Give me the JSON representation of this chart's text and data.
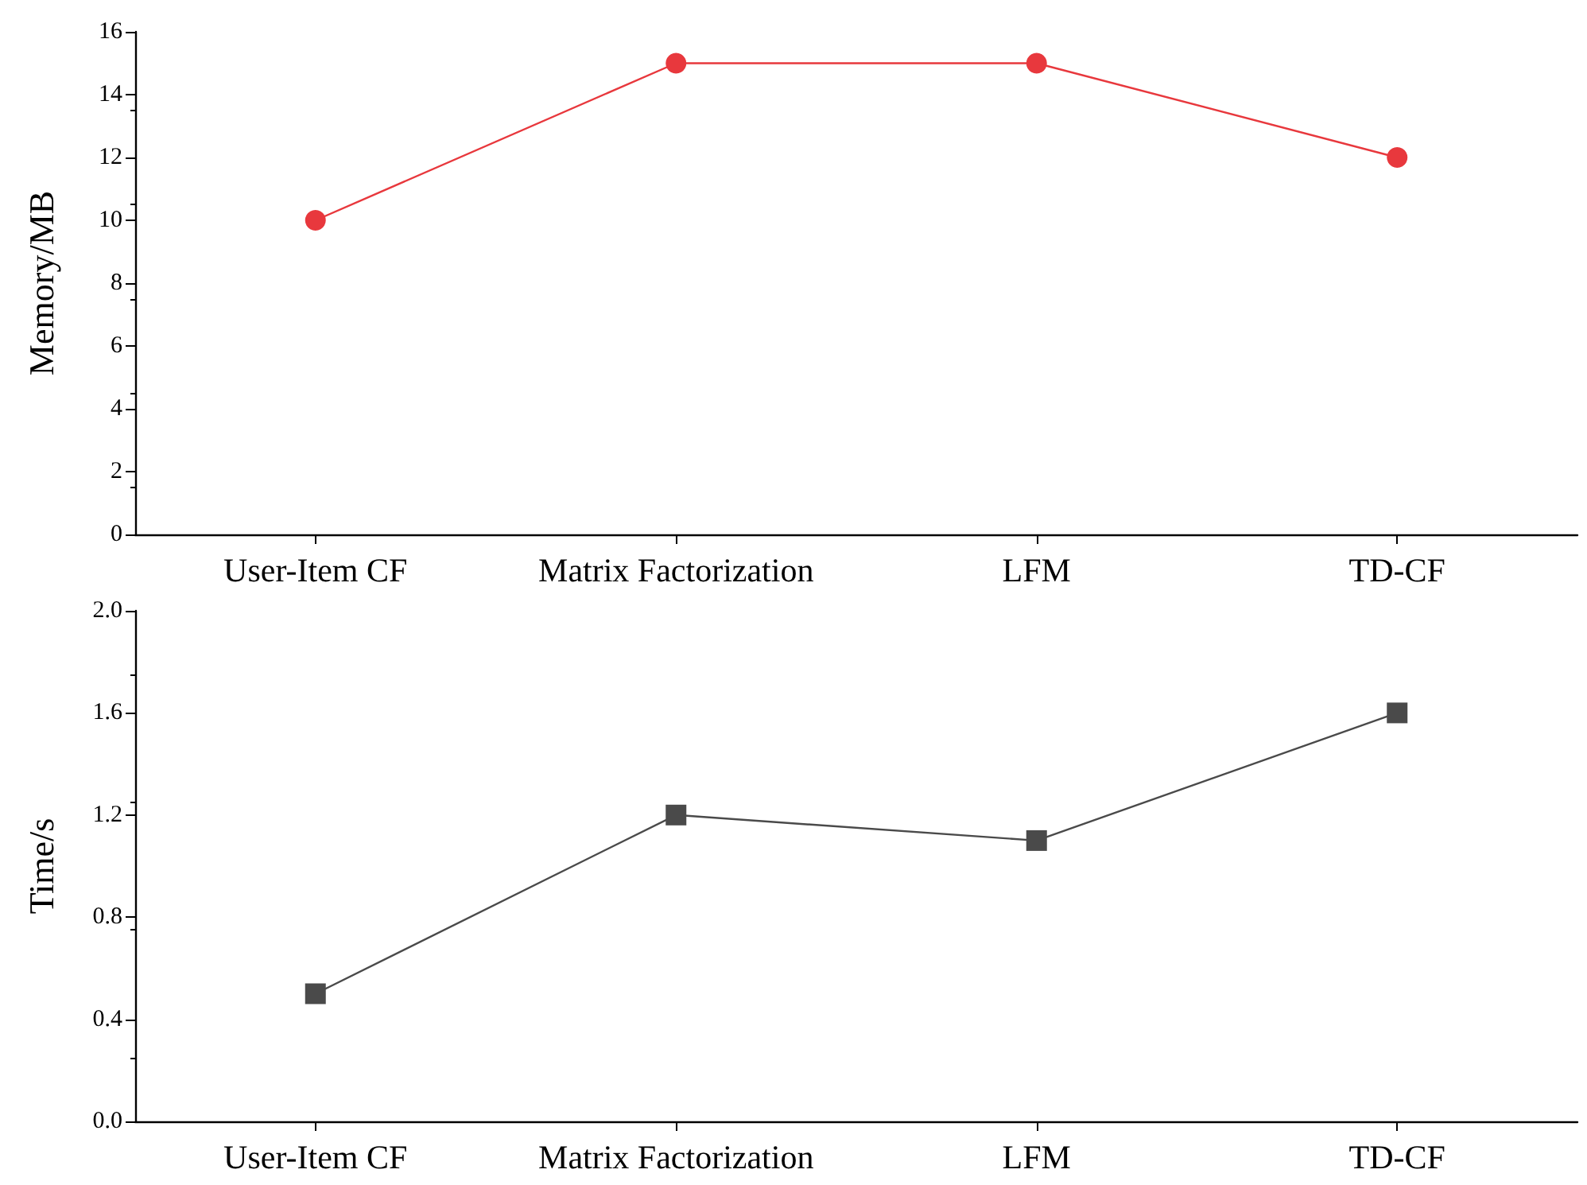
{
  "chart_data": [
    {
      "type": "line",
      "ylabel": "Memory/MB",
      "categories": [
        "User-Item CF",
        "Matrix Factorization",
        "LFM",
        "TD-CF"
      ],
      "series": [
        {
          "color": "#e8383d",
          "values": [
            10,
            15,
            15,
            12
          ]
        }
      ],
      "ylim": [
        0,
        16
      ],
      "yticks": [
        0,
        2,
        4,
        6,
        8,
        10,
        12,
        14,
        16
      ],
      "marker": "circle",
      "line_style": "solid"
    },
    {
      "type": "line",
      "ylabel": "Time/s",
      "categories": [
        "User-Item CF",
        "Matrix Factorization",
        "LFM",
        "TD-CF"
      ],
      "series": [
        {
          "color": "#4a4a4a",
          "values": [
            0.5,
            1.2,
            1.1,
            1.6
          ]
        }
      ],
      "ylim": [
        0,
        2
      ],
      "yticks": [
        {
          "value": 0,
          "label": "0.0"
        },
        0.4,
        0.8,
        1.2,
        1.6,
        {
          "value": 2,
          "label": "2.0"
        }
      ],
      "marker": "square",
      "line_style": "solid"
    }
  ]
}
